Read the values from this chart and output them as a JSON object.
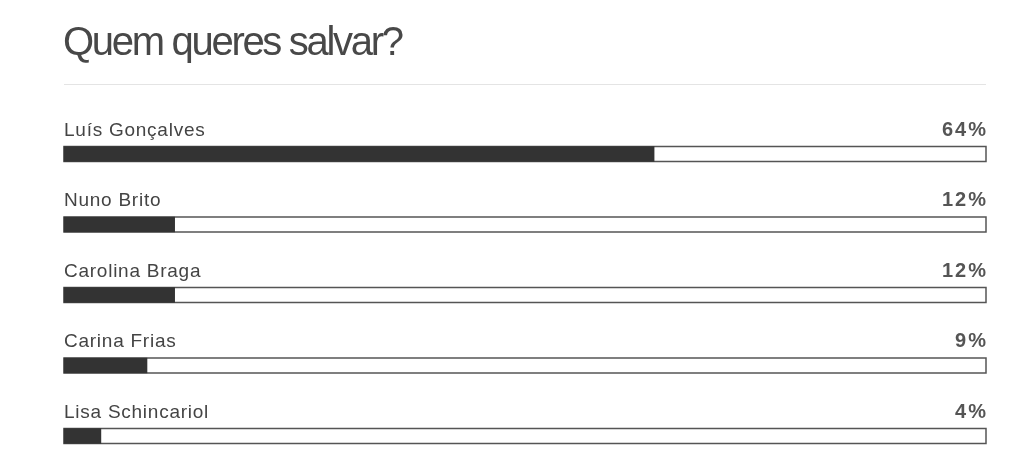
{
  "chart_data": {
    "type": "bar",
    "orientation": "horizontal",
    "title": "Quem queres salvar?",
    "categories": [
      "Luís Gonçalves",
      "Nuno Brito",
      "Carolina Braga",
      "Carina Frias",
      "Lisa Schincariol"
    ],
    "values": [
      64,
      12,
      12,
      9,
      4
    ],
    "value_labels": [
      "64%",
      "12%",
      "12%",
      "9%",
      "4%"
    ],
    "color": "#333333",
    "xlim": [
      0,
      100
    ],
    "tick_labels": "y",
    "legend": false
  }
}
